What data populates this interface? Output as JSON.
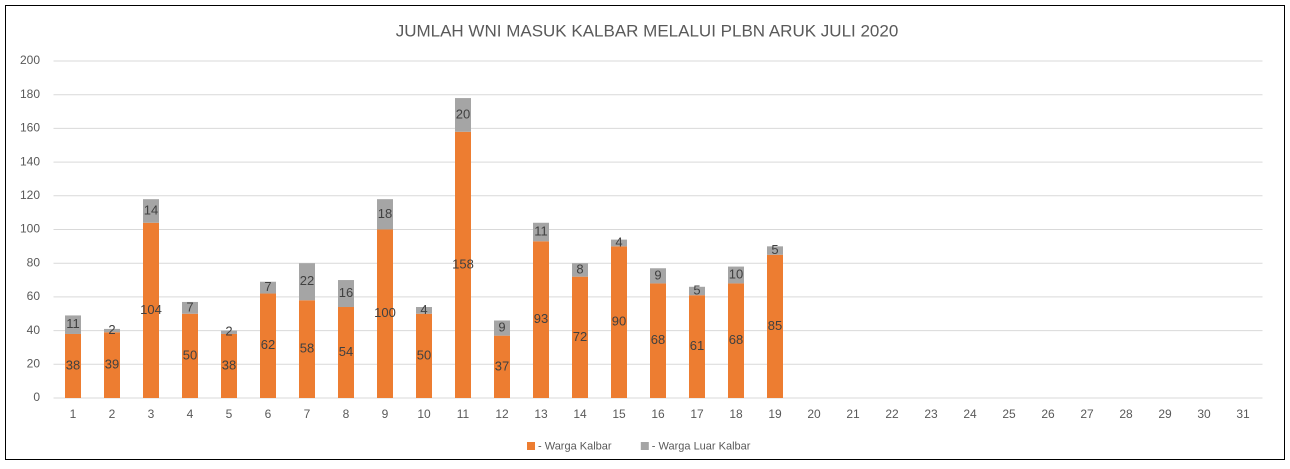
{
  "chart_data": {
    "type": "stacked_bar",
    "title": "JUMLAH WNI MASUK  KALBAR MELALUI PLBN ARUK JULI 2020",
    "categories": [
      "1",
      "2",
      "3",
      "4",
      "5",
      "6",
      "7",
      "8",
      "9",
      "10",
      "11",
      "12",
      "13",
      "14",
      "15",
      "16",
      "17",
      "18",
      "19",
      "20",
      "21",
      "22",
      "23",
      "24",
      "25",
      "26",
      "27",
      "28",
      "29",
      "30",
      "31"
    ],
    "series": [
      {
        "name": "- Warga Kalbar",
        "color": "#ed7d31",
        "values": [
          38,
          39,
          104,
          50,
          38,
          62,
          58,
          54,
          100,
          50,
          158,
          37,
          93,
          72,
          90,
          68,
          61,
          68,
          85,
          null,
          null,
          null,
          null,
          null,
          null,
          null,
          null,
          null,
          null,
          null,
          null
        ]
      },
      {
        "name": "- Warga Luar Kalbar",
        "color": "#a5a5a5",
        "values": [
          11,
          2,
          14,
          7,
          2,
          7,
          22,
          16,
          18,
          4,
          20,
          9,
          11,
          8,
          4,
          9,
          5,
          10,
          5,
          null,
          null,
          null,
          null,
          null,
          null,
          null,
          null,
          null,
          null,
          null,
          null
        ]
      }
    ],
    "ylim": [
      0,
      200
    ],
    "yticks": [
      0,
      20,
      40,
      60,
      80,
      100,
      120,
      140,
      160,
      180,
      200
    ],
    "grid": true,
    "legend": "bottom"
  }
}
